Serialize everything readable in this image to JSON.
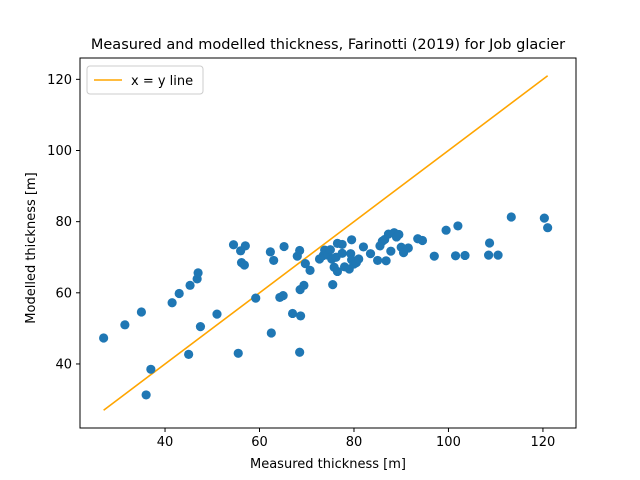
{
  "chart_data": {
    "type": "scatter",
    "title": "Measured and modelled thickness, Farinotti (2019) for Job glacier",
    "xlabel": "Measured thickness [m]",
    "ylabel": "Modelled thickness [m]",
    "xlim": [
      22,
      127
    ],
    "ylim": [
      22,
      126
    ],
    "xticks": [
      40,
      60,
      80,
      100,
      120
    ],
    "yticks": [
      40,
      60,
      80,
      100,
      120
    ],
    "grid": false,
    "legend": {
      "position": "top-left",
      "entries": [
        "x = y line"
      ]
    },
    "colors": {
      "points": "#1f77b4",
      "line": "#ffa500"
    },
    "reference_line": {
      "name": "x = y line",
      "x": [
        27,
        121
      ],
      "y": [
        27,
        121
      ]
    },
    "series": [
      {
        "points": [
          [
            27,
            47.3
          ],
          [
            31.5,
            51.0
          ],
          [
            35,
            54.6
          ],
          [
            36,
            31.3
          ],
          [
            37,
            38.5
          ],
          [
            41.5,
            57.2
          ],
          [
            43,
            59.8
          ],
          [
            45,
            42.7
          ],
          [
            45.3,
            62.1
          ],
          [
            46.8,
            63.9
          ],
          [
            47,
            65.6
          ],
          [
            47.5,
            50.5
          ],
          [
            51,
            54.0
          ],
          [
            54.5,
            73.5
          ],
          [
            55.5,
            43.0
          ],
          [
            56,
            71.8
          ],
          [
            56.2,
            68.5
          ],
          [
            56.8,
            67.8
          ],
          [
            57,
            73.2
          ],
          [
            59.2,
            58.5
          ],
          [
            62.3,
            71.5
          ],
          [
            62.5,
            48.7
          ],
          [
            63,
            69.1
          ],
          [
            64.3,
            58.7
          ],
          [
            65,
            59.2
          ],
          [
            65.2,
            73.0
          ],
          [
            67,
            54.2
          ],
          [
            68,
            70.3
          ],
          [
            68.5,
            71.9
          ],
          [
            68.5,
            43.3
          ],
          [
            68.6,
            60.9
          ],
          [
            68.7,
            53.5
          ],
          [
            69.4,
            62.1
          ],
          [
            69.7,
            68.2
          ],
          [
            70.7,
            66.3
          ],
          [
            72.7,
            69.5
          ],
          [
            73.5,
            70.5
          ],
          [
            73.8,
            72.0
          ],
          [
            74.5,
            70.6
          ],
          [
            75,
            72.1
          ],
          [
            75.3,
            69.5
          ],
          [
            75.5,
            62.3
          ],
          [
            75.8,
            67.2
          ],
          [
            76.2,
            70.0
          ],
          [
            76.5,
            66.0
          ],
          [
            76.5,
            73.9
          ],
          [
            77.5,
            71.1
          ],
          [
            77.5,
            73.6
          ],
          [
            78,
            67.3
          ],
          [
            79,
            66.7
          ],
          [
            79.3,
            71.0
          ],
          [
            79.5,
            69.3
          ],
          [
            79.5,
            74.9
          ],
          [
            80,
            68.1
          ],
          [
            80.5,
            68.5
          ],
          [
            81,
            69.5
          ],
          [
            82,
            72.9
          ],
          [
            83.5,
            71.0
          ],
          [
            85,
            69.1
          ],
          [
            85.5,
            73.2
          ],
          [
            86,
            74.5
          ],
          [
            86.5,
            75.0
          ],
          [
            86.8,
            69.0
          ],
          [
            87.3,
            76.5
          ],
          [
            87.8,
            71.7
          ],
          [
            88.5,
            76.9
          ],
          [
            89,
            75.7
          ],
          [
            89.5,
            76.4
          ],
          [
            90,
            72.8
          ],
          [
            90.5,
            71.3
          ],
          [
            91.5,
            72.6
          ],
          [
            93.5,
            75.2
          ],
          [
            94.5,
            74.7
          ],
          [
            97,
            70.3
          ],
          [
            99.5,
            77.6
          ],
          [
            101.5,
            70.4
          ],
          [
            102,
            78.8
          ],
          [
            103.5,
            70.5
          ],
          [
            108.5,
            70.6
          ],
          [
            108.7,
            74.0
          ],
          [
            110.5,
            70.6
          ],
          [
            113.3,
            81.3
          ],
          [
            120.3,
            81.0
          ],
          [
            121,
            78.3
          ]
        ]
      }
    ]
  }
}
